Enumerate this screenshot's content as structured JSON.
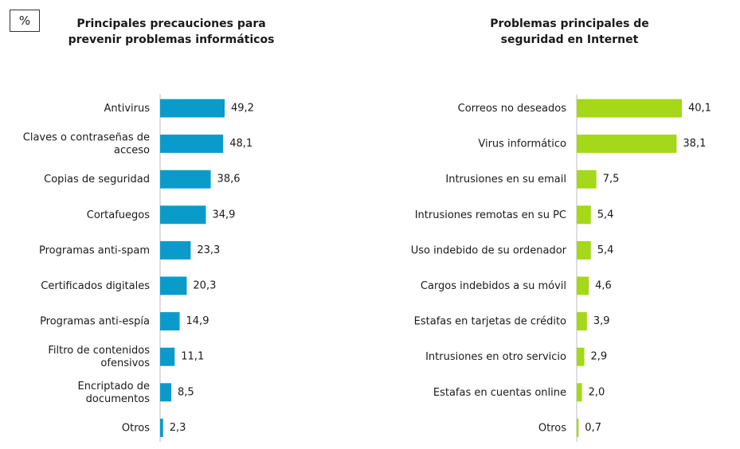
{
  "unit_label": "%",
  "chart_data": [
    {
      "type": "bar",
      "orientation": "horizontal",
      "title": "Principales precauciones para prevenir problemas informáticos",
      "title_lines": [
        "Principales precauciones para",
        "prevenir problemas informáticos"
      ],
      "color": "#0b9bca",
      "categories": [
        [
          "Antivirus"
        ],
        [
          "Claves o contraseñas de",
          "acceso"
        ],
        [
          "Copias de seguridad"
        ],
        [
          "Cortafuegos"
        ],
        [
          "Programas anti-spam"
        ],
        [
          "Certificados digitales"
        ],
        [
          "Programas anti-espía"
        ],
        [
          "Filtro de contenidos",
          "ofensivos"
        ],
        [
          "Encriptado de",
          "documentos"
        ],
        [
          "Otros"
        ]
      ],
      "values": [
        49.2,
        48.1,
        38.6,
        34.9,
        23.3,
        20.3,
        14.9,
        11.1,
        8.5,
        2.3
      ],
      "value_labels": [
        "49,2",
        "48,1",
        "38,6",
        "34,9",
        "23,3",
        "20,3",
        "14,9",
        "11,1",
        "8,5",
        "2,3"
      ],
      "xlim": [
        0,
        50
      ]
    },
    {
      "type": "bar",
      "orientation": "horizontal",
      "title": "Problemas principales de seguridad en Internet",
      "title_lines": [
        "Problemas principales de",
        "seguridad en Internet"
      ],
      "color": "#a4d818",
      "categories": [
        [
          "Correos no deseados"
        ],
        [
          "Virus informático"
        ],
        [
          "Intrusiones en su email"
        ],
        [
          "Intrusiones remotas en su PC"
        ],
        [
          "Uso indebido de su ordenador"
        ],
        [
          "Cargos indebidos a su móvil"
        ],
        [
          "Estafas en tarjetas de crédito"
        ],
        [
          "Intrusiones en otro servicio"
        ],
        [
          "Estafas en cuentas online"
        ],
        [
          "Otros"
        ]
      ],
      "values": [
        40.1,
        38.1,
        7.5,
        5.4,
        5.4,
        4.6,
        3.9,
        2.9,
        2.0,
        0.7
      ],
      "value_labels": [
        "40,1",
        "38,1",
        "7,5",
        "5,4",
        "5,4",
        "4,6",
        "3,9",
        "2,9",
        "2,0",
        "0,7"
      ],
      "xlim": [
        0,
        40
      ]
    }
  ]
}
